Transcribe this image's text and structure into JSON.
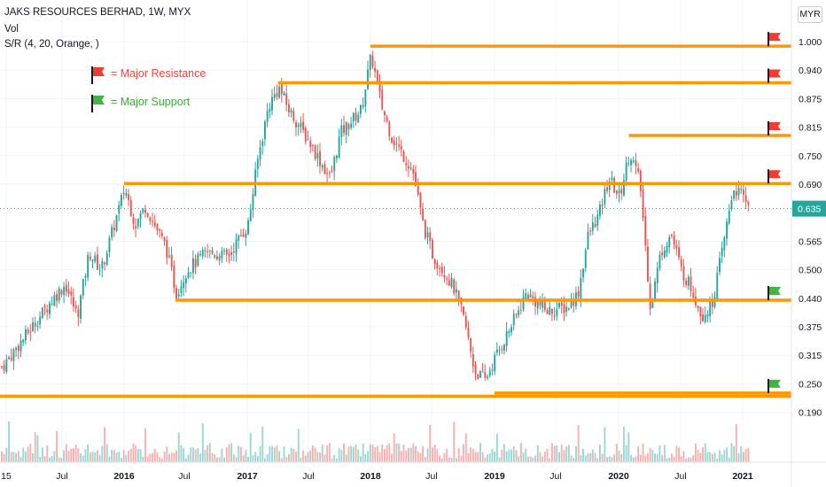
{
  "header": {
    "title": "JAKS RESOURCES BERHAD, 1W, MYX",
    "indicator_vol": "Vol",
    "indicator_sr": "S/R (4, 20, Orange, )"
  },
  "legend": {
    "resistance_label": "= Major Resistance",
    "support_label": "= Major Support"
  },
  "colors": {
    "up": "#26a69a",
    "down": "#ef5350",
    "sr_line": "#ff9800",
    "resistance_flag": "#f23b32",
    "support_flag": "#43b344",
    "price_badge": "#26a69a",
    "resistance_text": "#e8463c",
    "support_text": "#3ca83c"
  },
  "chart_data": {
    "type": "candlestick",
    "title": "JAKS RESOURCES BERHAD, 1W, MYX",
    "currency": "MYR",
    "last_price": 0.635,
    "price_axis_labels": [
      "1.000",
      "0.940",
      "0.875",
      "0.815",
      "0.750",
      "0.690",
      "0.630",
      "0.565",
      "0.500",
      "0.440",
      "0.375",
      "0.315",
      "0.250",
      "0.190"
    ],
    "time_axis_labels": [
      "15",
      "Jul",
      "2016",
      "Jul",
      "2017",
      "Jul",
      "2018",
      "Jul",
      "2019",
      "Jul",
      "2020",
      "Jul",
      "2021"
    ],
    "sr_levels": [
      {
        "type": "resistance",
        "price": 0.99,
        "from": "2018-01"
      },
      {
        "type": "resistance",
        "price": 0.91,
        "from": "2017-04"
      },
      {
        "type": "resistance",
        "price": 0.795,
        "from": "2020-02"
      },
      {
        "type": "resistance",
        "price": 0.69,
        "from": "2016-01"
      },
      {
        "type": "support",
        "price": 0.435,
        "from": "2016-06"
      },
      {
        "type": "support",
        "price": 0.232,
        "from": "2019-01"
      },
      {
        "type": "support",
        "price": 0.225,
        "from": "2015-01"
      }
    ],
    "price_path": [
      [
        "2015-01",
        0.24
      ],
      [
        "2015-03",
        0.3
      ],
      [
        "2015-05",
        0.37
      ],
      [
        "2015-07",
        0.44
      ],
      [
        "2015-08",
        0.47
      ],
      [
        "2015-09",
        0.4
      ],
      [
        "2015-10",
        0.54
      ],
      [
        "2015-11",
        0.5
      ],
      [
        "2016-01",
        0.68
      ],
      [
        "2016-02",
        0.6
      ],
      [
        "2016-03",
        0.64
      ],
      [
        "2016-05",
        0.55
      ],
      [
        "2016-06",
        0.45
      ],
      [
        "2016-07",
        0.5
      ],
      [
        "2016-09",
        0.54
      ],
      [
        "2016-11",
        0.53
      ],
      [
        "2017-01",
        0.6
      ],
      [
        "2017-02",
        0.75
      ],
      [
        "2017-03",
        0.86
      ],
      [
        "2017-04",
        0.9
      ],
      [
        "2017-05",
        0.85
      ],
      [
        "2017-07",
        0.78
      ],
      [
        "2017-09",
        0.7
      ],
      [
        "2017-10",
        0.8
      ],
      [
        "2017-12",
        0.85
      ],
      [
        "2018-01",
        0.97
      ],
      [
        "2018-02",
        0.86
      ],
      [
        "2018-03",
        0.79
      ],
      [
        "2018-05",
        0.72
      ],
      [
        "2018-06",
        0.6
      ],
      [
        "2018-07",
        0.53
      ],
      [
        "2018-08",
        0.5
      ],
      [
        "2018-09",
        0.46
      ],
      [
        "2018-10",
        0.39
      ],
      [
        "2018-11",
        0.28
      ],
      [
        "2018-12",
        0.26
      ],
      [
        "2019-01",
        0.31
      ],
      [
        "2019-03",
        0.4
      ],
      [
        "2019-04",
        0.45
      ],
      [
        "2019-06",
        0.41
      ],
      [
        "2019-08",
        0.42
      ],
      [
        "2019-09",
        0.45
      ],
      [
        "2019-10",
        0.58
      ],
      [
        "2019-11",
        0.62
      ],
      [
        "2019-12",
        0.7
      ],
      [
        "2020-01",
        0.66
      ],
      [
        "2020-02",
        0.76
      ],
      [
        "2020-03",
        0.69
      ],
      [
        "2020-04",
        0.42
      ],
      [
        "2020-05",
        0.54
      ],
      [
        "2020-06",
        0.58
      ],
      [
        "2020-07",
        0.5
      ],
      [
        "2020-08",
        0.46
      ],
      [
        "2020-09",
        0.4
      ],
      [
        "2020-10",
        0.43
      ],
      [
        "2020-11",
        0.55
      ],
      [
        "2020-12",
        0.68
      ],
      [
        "2021-01",
        0.66
      ],
      [
        "2021-02",
        0.63
      ]
    ]
  }
}
